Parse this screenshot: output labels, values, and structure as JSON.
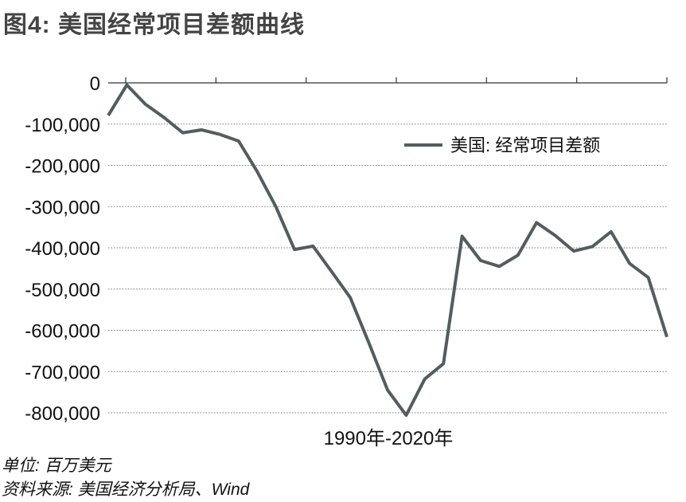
{
  "title": "图4: 美国经常项目差额曲线",
  "unit_note": "单位: 百万美元",
  "source_note": "资料来源: 美国经济分析局、Wind",
  "colors": {
    "line": "#525d5f",
    "grid": "#777777",
    "text": "#111111",
    "title": "#444444"
  },
  "chart_data": {
    "type": "line",
    "title": "",
    "xlabel": "1990年-2020年",
    "ylabel": "",
    "x": [
      1990,
      1991,
      1992,
      1993,
      1994,
      1995,
      1996,
      1997,
      1998,
      1999,
      2000,
      2001,
      2002,
      2003,
      2004,
      2005,
      2006,
      2007,
      2008,
      2009,
      2010,
      2011,
      2012,
      2013,
      2014,
      2015,
      2016,
      2017,
      2018,
      2019,
      2020
    ],
    "series": [
      {
        "name": "美国: 经常项目差额",
        "values": [
          -79000,
          -5000,
          -52000,
          -84000,
          -121000,
          -114000,
          -125000,
          -141000,
          -215000,
          -300000,
          -404000,
          -396000,
          -458000,
          -521000,
          -631000,
          -745000,
          -806000,
          -718000,
          -681000,
          -372000,
          -431000,
          -445000,
          -418000,
          -339000,
          -370000,
          -408000,
          -397000,
          -361000,
          -438000,
          -472000,
          -616000
        ]
      }
    ],
    "ylim": [
      -800000,
      0
    ],
    "yticks": [
      0,
      -100000,
      -200000,
      -300000,
      -400000,
      -500000,
      -600000,
      -700000,
      -800000
    ],
    "ytick_labels": [
      "0",
      "-100,000",
      "-200,000",
      "-300,000",
      "-400,000",
      "-500,000",
      "-600,000",
      "-700,000",
      "-800,000"
    ],
    "grid": true,
    "legend_position": "top-right"
  }
}
